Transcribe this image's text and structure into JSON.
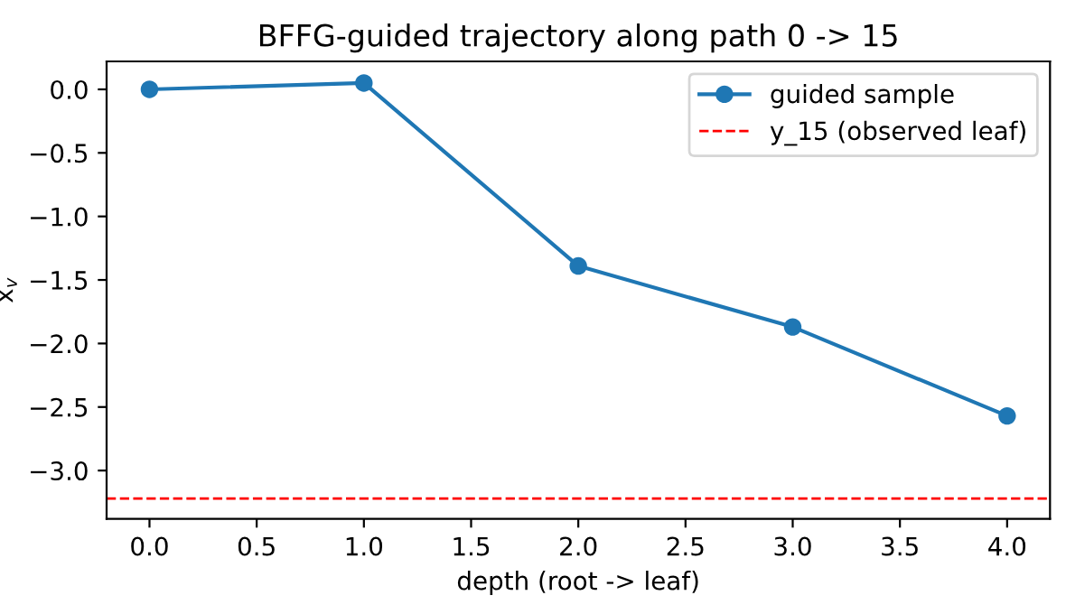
{
  "chart_data": {
    "type": "line",
    "title": "BFFG-guided trajectory along path 0 -> 15",
    "xlabel": "depth (root -> leaf)",
    "ylabel": "x$_{v}$",
    "x": [
      0,
      1,
      2,
      3,
      4
    ],
    "series": [
      {
        "name": "guided sample",
        "color": "#1f77b4",
        "values": [
          0.0,
          0.05,
          -1.39,
          -1.87,
          -2.57
        ]
      }
    ],
    "marker": "circle",
    "line_style": "solid",
    "ref_lines": [
      {
        "axis": "y",
        "value": -3.22,
        "label": "y_15 (observed leaf)",
        "color": "#ff0000",
        "line_style": "dashed"
      }
    ],
    "xlim": [
      -0.2,
      4.2
    ],
    "xticks": [
      {
        "value": 0,
        "label": "0.0"
      },
      0.5,
      {
        "value": 1,
        "label": "1.0"
      },
      1.5,
      {
        "value": 2,
        "label": "2.0"
      },
      2.5,
      {
        "value": 3,
        "label": "3.0"
      },
      3.5,
      {
        "value": 4,
        "label": "4.0"
      }
    ],
    "ylim": [
      -3.38,
      0.22
    ],
    "yticks": [
      {
        "value": -3,
        "label": "−3.0"
      },
      {
        "value": -2.5,
        "label": "−2.5"
      },
      {
        "value": -2,
        "label": "−2.0"
      },
      {
        "value": -1.5,
        "label": "−1.5"
      },
      {
        "value": -1,
        "label": "−1.0"
      },
      {
        "value": -0.5,
        "label": "−0.5"
      },
      {
        "value": 0,
        "label": "0.0"
      }
    ],
    "grid": false,
    "legend": "top right"
  }
}
